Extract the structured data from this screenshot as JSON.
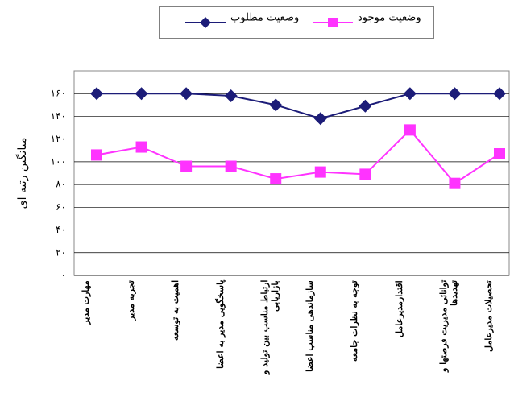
{
  "chart_data": {
    "type": "line",
    "y_label": "میانگین رتبه ای",
    "categories": [
      "مهارت مدیر",
      "تجربه مدیر",
      "اهمیت به توسعه",
      "پاسخگویی مدیر به اعضا",
      "ارتباط مناسب بین تولید و بازاریابی",
      "سازماندهی مناسب اعضا",
      "توجه به نظرات جامعه",
      "اقتدارمدیرعامل",
      "توانائی مدیریت فرصتها و تهدیدها",
      "تحصیلات مدیرعامل"
    ],
    "series": [
      {
        "name": "وضعیت مطلوب",
        "color": "#1c1c78",
        "marker": "diamond",
        "values": [
          160,
          160,
          160,
          158,
          150,
          138,
          149,
          160,
          160,
          160
        ]
      },
      {
        "name": "وضعیت موجود",
        "color": "#ff33ff",
        "marker": "square",
        "values": [
          106,
          113,
          96,
          96,
          85,
          91,
          89,
          128,
          81,
          107
        ]
      }
    ],
    "ylim": [
      0,
      180
    ],
    "yticks": [
      {
        "value": 0,
        "label": "۰"
      },
      {
        "value": 20,
        "label": "۲۰"
      },
      {
        "value": 40,
        "label": "۴۰"
      },
      {
        "value": 60,
        "label": "۶۰"
      },
      {
        "value": 80,
        "label": "۸۰"
      },
      {
        "value": 100,
        "label": "۱۰۰"
      },
      {
        "value": 120,
        "label": "۱۲۰"
      },
      {
        "value": 140,
        "label": "۱۴۰"
      },
      {
        "value": 160,
        "label": "۱۶۰"
      }
    ],
    "grid": true
  }
}
